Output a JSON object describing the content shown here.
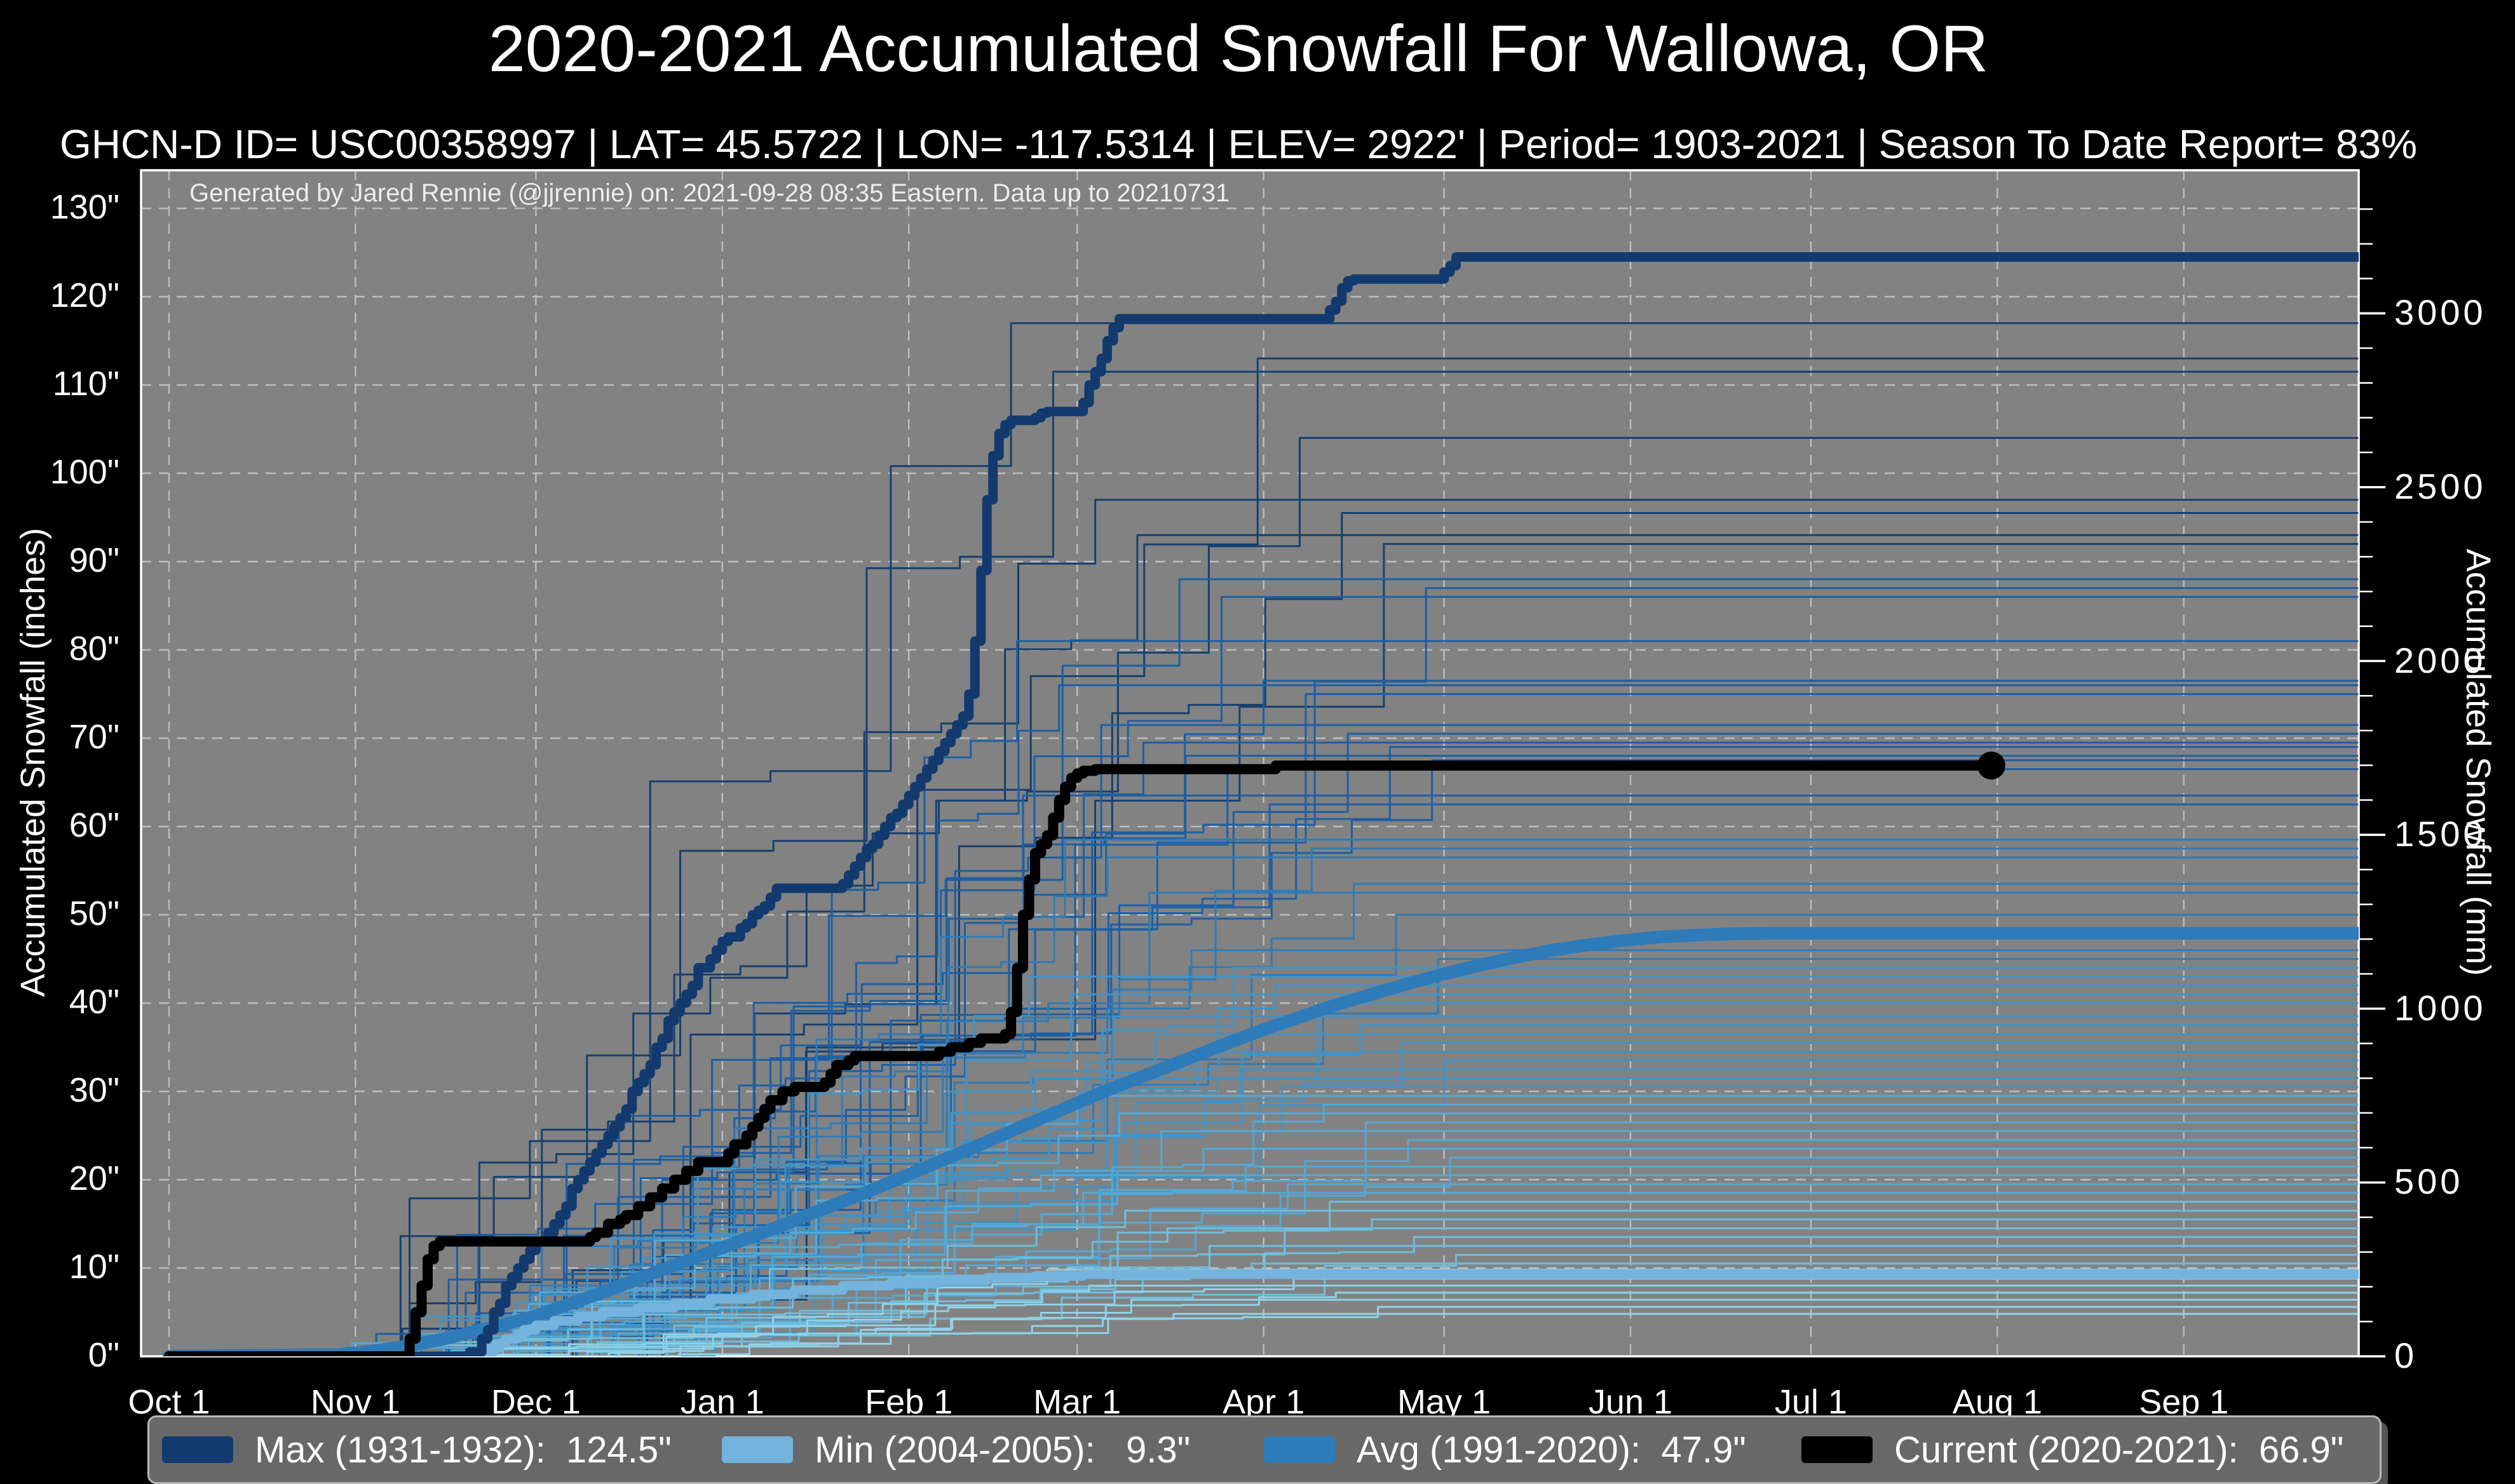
{
  "title": "2020-2021 Accumulated Snowfall For Wallowa, OR",
  "subtitle": "GHCN-D ID= USC00358997 | LAT= 45.5722 | LON= -117.5314 | ELEV= 2922' | Period= 1903-2021 | Season To Date Report= 83%",
  "annotation": "Generated by Jared Rennie (@jjrennie) on: 2021-09-28 08:35 Eastern. Data up to 20210731",
  "axes": {
    "left_label": "Accumulated Snowfall (inches)",
    "right_label": "Accumulated Snowfall (mm)",
    "x_ticks": [
      "Oct 1",
      "Nov 1",
      "Dec 1",
      "Jan 1",
      "Feb 1",
      "Mar 1",
      "Apr 1",
      "May 1",
      "Jun 1",
      "Jul 1",
      "Aug 1",
      "Sep 1"
    ],
    "y_ticks_inches": [
      "0\"",
      "10\"",
      "20\"",
      "30\"",
      "40\"",
      "50\"",
      "60\"",
      "70\"",
      "80\"",
      "90\"",
      "100\"",
      "110\"",
      "120\"",
      "130\""
    ],
    "y_ticks_mm": [
      "0",
      "500",
      "1000",
      "1500",
      "2000",
      "2500",
      "3000"
    ]
  },
  "colors": {
    "page_bg": "#000000",
    "plot_bg": "#828282",
    "grid": "#c9c9c9",
    "spine": "#ffffff",
    "max": "#133a6e",
    "min": "#74b3dc",
    "avg": "#2e7bba",
    "current": "#000000",
    "legend_bg": "#686868",
    "legend_border": "#b9b9b9"
  },
  "legend": {
    "items": [
      {
        "label": "Max (1931-1932):  124.5\"",
        "color": "#133a6e"
      },
      {
        "label": "Min (2004-2005):   9.3\"",
        "color": "#74b3dc"
      },
      {
        "label": "Avg (1991-2020):  47.9\"",
        "color": "#2e7bba"
      },
      {
        "label": "Current (2020-2021):  66.9\"",
        "color": "#000000"
      }
    ]
  },
  "chart_data": {
    "type": "line",
    "title": "2020-2021 Accumulated Snowfall For Wallowa, OR",
    "x_unit": "days since Oct 1",
    "x_tick_day_offsets": [
      0,
      31,
      61,
      92,
      123,
      151,
      182,
      212,
      243,
      273,
      304,
      335
    ],
    "ylim_inches": [
      0,
      134
    ],
    "ylim_mm": [
      0,
      3400
    ],
    "grid": "dashed, light gray, horizontal every 10 inches and vertical at month starts",
    "legend_position": "bottom, horizontal strip",
    "series": [
      {
        "name": "Max (1931-1932)",
        "final": 124.5,
        "units": "inches",
        "color": "#133a6e",
        "style": "step",
        "width": 15,
        "points": [
          [
            0,
            0
          ],
          [
            48,
            0
          ],
          [
            50,
            0.5
          ],
          [
            52,
            2
          ],
          [
            53,
            3
          ],
          [
            54,
            5
          ],
          [
            55,
            6
          ],
          [
            56,
            8
          ],
          [
            57,
            9
          ],
          [
            58,
            10
          ],
          [
            59,
            11
          ],
          [
            60,
            12
          ],
          [
            61,
            13
          ],
          [
            63,
            14
          ],
          [
            64,
            15
          ],
          [
            65,
            16
          ],
          [
            66,
            17
          ],
          [
            67,
            19
          ],
          [
            68,
            20
          ],
          [
            69,
            21
          ],
          [
            70,
            22
          ],
          [
            71,
            23
          ],
          [
            72,
            24
          ],
          [
            73,
            25
          ],
          [
            74,
            26
          ],
          [
            75,
            27
          ],
          [
            76,
            28
          ],
          [
            77,
            30
          ],
          [
            78,
            31
          ],
          [
            79,
            32
          ],
          [
            80,
            33
          ],
          [
            81,
            35
          ],
          [
            82,
            36
          ],
          [
            83,
            38
          ],
          [
            84,
            39
          ],
          [
            85,
            40
          ],
          [
            86,
            41
          ],
          [
            87,
            42
          ],
          [
            88,
            44
          ],
          [
            90,
            45
          ],
          [
            91,
            46
          ],
          [
            92,
            47
          ],
          [
            93,
            47.5
          ],
          [
            95,
            48.5
          ],
          [
            96,
            49
          ],
          [
            97,
            50
          ],
          [
            98,
            50.5
          ],
          [
            99,
            51
          ],
          [
            100,
            52
          ],
          [
            101,
            53
          ],
          [
            111,
            53
          ],
          [
            112,
            53.5
          ],
          [
            113,
            54.5
          ],
          [
            114,
            55.5
          ],
          [
            115,
            56.5
          ],
          [
            116,
            57.5
          ],
          [
            117,
            58
          ],
          [
            118,
            59
          ],
          [
            119,
            60
          ],
          [
            120,
            61
          ],
          [
            121,
            61.5
          ],
          [
            122,
            62.5
          ],
          [
            123,
            63.5
          ],
          [
            124,
            64.5
          ],
          [
            125,
            65.5
          ],
          [
            126,
            66.5
          ],
          [
            127,
            67.5
          ],
          [
            128,
            68.5
          ],
          [
            129,
            69.5
          ],
          [
            130,
            70.5
          ],
          [
            131,
            71.5
          ],
          [
            132,
            72.5
          ],
          [
            133,
            75
          ],
          [
            134,
            81
          ],
          [
            135,
            89
          ],
          [
            136,
            97
          ],
          [
            137,
            102
          ],
          [
            138,
            104.5
          ],
          [
            139,
            105.5
          ],
          [
            140,
            106
          ],
          [
            144,
            106.3
          ],
          [
            145,
            106.8
          ],
          [
            146,
            107
          ],
          [
            151,
            107
          ],
          [
            152,
            108
          ],
          [
            153,
            110
          ],
          [
            154,
            111.5
          ],
          [
            155,
            113
          ],
          [
            156,
            115
          ],
          [
            157,
            116.5
          ],
          [
            158,
            117.5
          ],
          [
            192,
            117.5
          ],
          [
            193,
            118.5
          ],
          [
            194,
            119.5
          ],
          [
            195,
            121
          ],
          [
            196,
            121.8
          ],
          [
            197,
            122
          ],
          [
            211,
            122
          ],
          [
            212,
            122.8
          ],
          [
            213,
            123.5
          ],
          [
            214,
            124.5
          ],
          [
            364,
            124.5
          ]
        ]
      },
      {
        "name": "Min (2004-2005)",
        "final": 9.3,
        "units": "inches",
        "color": "#74b3dc",
        "style": "step",
        "width": 15,
        "points": [
          [
            0,
            0
          ],
          [
            52,
            0
          ],
          [
            53,
            0.5
          ],
          [
            54,
            1
          ],
          [
            55,
            1.5
          ],
          [
            56,
            2
          ],
          [
            58,
            2.5
          ],
          [
            59,
            3
          ],
          [
            61,
            3.5
          ],
          [
            64,
            4
          ],
          [
            68,
            4.5
          ],
          [
            72,
            5
          ],
          [
            78,
            5.5
          ],
          [
            84,
            6
          ],
          [
            90,
            6.5
          ],
          [
            97,
            7
          ],
          [
            104,
            7.5
          ],
          [
            112,
            8
          ],
          [
            120,
            8.3
          ],
          [
            128,
            8.6
          ],
          [
            136,
            8.9
          ],
          [
            144,
            9.1
          ],
          [
            152,
            9.3
          ],
          [
            364,
            9.3
          ]
        ]
      },
      {
        "name": "Avg (1991-2020)",
        "final": 47.9,
        "units": "inches",
        "color": "#2e7bba",
        "style": "smooth",
        "width": 20,
        "points": [
          [
            0,
            0
          ],
          [
            28,
            0.2
          ],
          [
            34,
            0.6
          ],
          [
            40,
            1.2
          ],
          [
            46,
            2
          ],
          [
            52,
            3
          ],
          [
            58,
            4
          ],
          [
            61,
            4.6
          ],
          [
            66,
            5.8
          ],
          [
            72,
            7.2
          ],
          [
            78,
            8.8
          ],
          [
            84,
            10.3
          ],
          [
            90,
            11.8
          ],
          [
            92,
            12.3
          ],
          [
            98,
            13.8
          ],
          [
            104,
            15.4
          ],
          [
            110,
            17
          ],
          [
            116,
            18.6
          ],
          [
            123,
            20.6
          ],
          [
            129,
            22.3
          ],
          [
            135,
            24
          ],
          [
            141,
            25.8
          ],
          [
            147,
            27.5
          ],
          [
            151,
            28.7
          ],
          [
            157,
            30.4
          ],
          [
            163,
            32
          ],
          [
            169,
            33.6
          ],
          [
            175,
            35.2
          ],
          [
            182,
            37
          ],
          [
            188,
            38.4
          ],
          [
            194,
            39.8
          ],
          [
            200,
            41
          ],
          [
            206,
            42.2
          ],
          [
            212,
            43.3
          ],
          [
            218,
            44.3
          ],
          [
            224,
            45.2
          ],
          [
            230,
            46
          ],
          [
            236,
            46.6
          ],
          [
            242,
            47.1
          ],
          [
            248,
            47.5
          ],
          [
            254,
            47.7
          ],
          [
            260,
            47.85
          ],
          [
            266,
            47.9
          ],
          [
            364,
            47.9
          ]
        ]
      },
      {
        "name": "Current (2020-2021)",
        "final": 66.9,
        "units": "inches",
        "color": "#000000",
        "style": "step",
        "width": 16,
        "end_marker": true,
        "end_day": 303,
        "points": [
          [
            0,
            0
          ],
          [
            39,
            0
          ],
          [
            40,
            2
          ],
          [
            41,
            5
          ],
          [
            42,
            8
          ],
          [
            43,
            11
          ],
          [
            44,
            12.5
          ],
          [
            45,
            13
          ],
          [
            69,
            13
          ],
          [
            70,
            13.5
          ],
          [
            71,
            14
          ],
          [
            73,
            15
          ],
          [
            75,
            15.5
          ],
          [
            76,
            16
          ],
          [
            78,
            17
          ],
          [
            80,
            18
          ],
          [
            82,
            19
          ],
          [
            84,
            20
          ],
          [
            86,
            21
          ],
          [
            88,
            22
          ],
          [
            92,
            22
          ],
          [
            93,
            23
          ],
          [
            94,
            24
          ],
          [
            96,
            25
          ],
          [
            97,
            26
          ],
          [
            98,
            27
          ],
          [
            99,
            28
          ],
          [
            100,
            29
          ],
          [
            102,
            30
          ],
          [
            104,
            30.5
          ],
          [
            109,
            31
          ],
          [
            110,
            32
          ],
          [
            111,
            33
          ],
          [
            113,
            33.5
          ],
          [
            114,
            34
          ],
          [
            126,
            34
          ],
          [
            128,
            34.5
          ],
          [
            130,
            35
          ],
          [
            133,
            35.5
          ],
          [
            135,
            36
          ],
          [
            139,
            36.5
          ],
          [
            140,
            39
          ],
          [
            141,
            44
          ],
          [
            142,
            50
          ],
          [
            143,
            54
          ],
          [
            144,
            57
          ],
          [
            145,
            58
          ],
          [
            146,
            59
          ],
          [
            147,
            61
          ],
          [
            148,
            63
          ],
          [
            149,
            64.5
          ],
          [
            150,
            65.5
          ],
          [
            151,
            66
          ],
          [
            152,
            66.3
          ],
          [
            154,
            66.5
          ],
          [
            182,
            66.5
          ],
          [
            184,
            66.9
          ],
          [
            303,
            66.9
          ]
        ]
      }
    ],
    "background_years": {
      "note": "Thin step lines: one per historical season 1903-2021 (approx. season totals read from right-edge plateaus); color shades from dark navy (snowiest) to pale blue (least snowy).",
      "finals_inches": [
        117,
        113,
        111.5,
        104,
        97,
        95.5,
        93,
        92,
        88,
        87,
        86,
        81,
        76.5,
        76,
        75,
        71.5,
        70.5,
        69.5,
        69,
        68,
        67.5,
        66.5,
        63.5,
        62.5,
        58.5,
        57.5,
        56.5,
        53.5,
        52.5,
        50,
        46,
        45,
        44,
        43,
        42,
        41,
        40,
        38.5,
        37.5,
        36.5,
        35.5,
        34.5,
        33.5,
        32.5,
        31.5,
        30.5,
        29.5,
        28.5,
        27.5,
        26.5,
        25.5,
        24.5,
        23.5,
        22.5,
        21.5,
        20.5,
        19.5,
        18.5,
        17.5,
        16.5,
        15.5,
        14.5,
        13.5,
        12.5,
        11.5,
        10.5,
        9.8,
        8.8,
        8,
        7.2,
        6.4,
        5.6,
        4.8
      ],
      "width": 3
    },
    "palette_by_final": [
      {
        "min": 90,
        "color": "#16406f"
      },
      {
        "min": 60,
        "color": "#1b5fa5"
      },
      {
        "min": 45,
        "color": "#2e7bb8"
      },
      {
        "min": 30,
        "color": "#3f93c6"
      },
      {
        "min": 18,
        "color": "#55a8d4"
      },
      {
        "min": 10,
        "color": "#6fbede"
      },
      {
        "min": 0,
        "color": "#8fd2e8"
      }
    ]
  }
}
